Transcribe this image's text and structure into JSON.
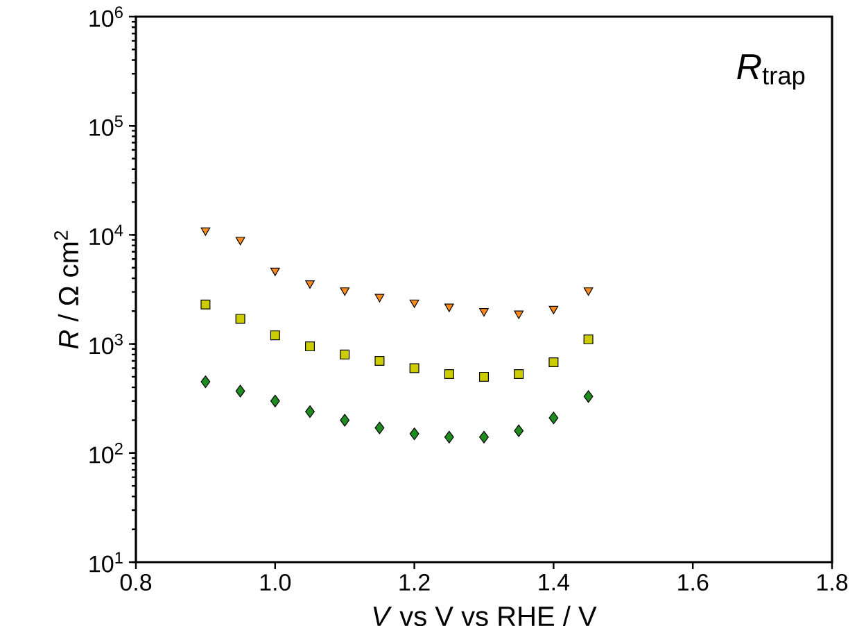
{
  "chart_data": {
    "type": "scatter",
    "title": "*R*$_{trap}$",
    "xlabel": "*V* vs V vs RHE / V",
    "ylabel": "*R* / Ω cm$^{2}$",
    "log": "y",
    "x": [
      0.9,
      0.95,
      1.0,
      1.05,
      1.1,
      1.15,
      1.2,
      1.25,
      1.3,
      1.35,
      1.4,
      1.45
    ],
    "series": [
      {
        "color": "#ff8c1a",
        "marker": "triangle",
        "values": [
          11000,
          9000,
          4700,
          3600,
          3100,
          2700,
          2400,
          2200,
          2000,
          1900,
          2100,
          3100
        ]
      },
      {
        "color": "#cccc00",
        "marker": "square",
        "values": [
          2300,
          1700,
          1200,
          950,
          800,
          700,
          600,
          530,
          500,
          530,
          680,
          1100
        ]
      },
      {
        "color": "#1e8c1e",
        "marker": "diamond",
        "values": [
          450,
          370,
          300,
          240,
          200,
          170,
          150,
          140,
          140,
          160,
          210,
          330
        ]
      }
    ],
    "xlim": [
      0.8,
      1.8
    ],
    "xticks": [
      {
        "value": 0.8,
        "label": "0.8"
      },
      {
        "value": 1.0,
        "label": "1.0"
      },
      {
        "value": 1.2,
        "label": "1.2"
      },
      {
        "value": 1.4,
        "label": "1.4"
      },
      {
        "value": 1.6,
        "label": "1.6"
      },
      {
        "value": 1.8,
        "label": "1.8"
      }
    ],
    "ylim": [
      10,
      1000000
    ],
    "yticks": [
      {
        "value": 10,
        "label": "10$^{1}$"
      },
      {
        "value": 100,
        "label": "10$^{2}$"
      },
      {
        "value": 1000,
        "label": "10$^{3}$"
      },
      {
        "value": 10000,
        "label": "10$^{4}$"
      },
      {
        "value": 100000,
        "label": "10$^{5}$"
      },
      {
        "value": 1000000,
        "label": "10$^{6}$"
      }
    ],
    "grid": false
  }
}
